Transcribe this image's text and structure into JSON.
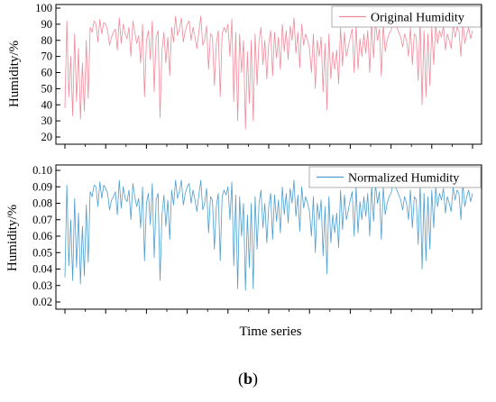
{
  "caption": {
    "open": "(",
    "letter": "b",
    "close": ")"
  },
  "chart_data": [
    {
      "type": "line",
      "ylabel": "Humidity/%",
      "xlabel": "",
      "ylim": [
        20,
        100
      ],
      "yticks": [
        20,
        30,
        40,
        50,
        60,
        70,
        80,
        90,
        100
      ],
      "ytick_labels": [
        "20",
        "30",
        "40",
        "50",
        "60",
        "70",
        "80",
        "90",
        "100"
      ],
      "legend_position": "top-right",
      "series": [
        {
          "name": "Original Humidity",
          "color": "#f08a9a",
          "values": [
            38,
            92,
            45,
            70,
            33,
            84,
            42,
            75,
            31,
            66,
            36,
            80,
            44,
            88,
            85,
            92,
            90,
            79,
            93,
            84,
            91,
            90,
            86,
            77,
            82,
            85,
            87,
            74,
            94,
            78,
            90,
            84,
            81,
            88,
            70,
            92,
            85,
            78,
            83,
            66,
            90,
            45,
            80,
            86,
            68,
            92,
            48,
            82,
            86,
            32,
            74,
            85,
            66,
            82,
            58,
            88,
            79,
            95,
            83,
            87,
            94,
            79,
            86,
            90,
            92,
            80,
            88,
            82,
            75,
            85,
            95,
            77,
            80,
            89,
            62,
            84,
            82,
            52,
            78,
            86,
            45,
            84,
            88,
            85,
            90,
            70,
            93,
            42,
            85,
            30,
            84,
            60,
            80,
            25,
            73,
            41,
            80,
            30,
            84,
            52,
            80,
            88,
            65,
            80,
            56,
            78,
            86,
            58,
            85,
            69,
            82,
            62,
            90,
            73,
            86,
            68,
            89,
            80,
            94,
            72,
            85,
            63,
            90,
            77,
            84,
            80,
            75,
            60,
            84,
            50,
            80,
            70,
            82,
            48,
            78,
            37,
            84,
            56,
            73,
            62,
            74,
            53,
            88,
            64,
            85,
            70,
            76,
            82,
            87,
            60,
            90,
            62,
            81,
            70,
            84,
            72,
            86,
            60,
            91,
            69,
            92,
            80,
            87,
            58,
            90,
            73,
            80,
            84,
            86,
            92,
            90,
            88,
            85,
            82,
            76,
            84,
            80,
            70,
            88,
            65,
            84,
            82,
            55,
            92,
            40,
            86,
            45,
            84,
            52,
            88,
            65,
            90,
            78,
            86,
            82,
            89,
            74,
            84,
            80,
            75,
            90,
            82,
            88,
            86,
            70,
            92,
            78,
            84,
            88,
            81,
            86
          ]
        }
      ]
    },
    {
      "type": "line",
      "ylabel": "Humidity/%",
      "xlabel": "Time series",
      "ylim": [
        0.02,
        0.1
      ],
      "yticks": [
        0.02,
        0.03,
        0.04,
        0.05,
        0.06,
        0.07,
        0.08,
        0.09,
        0.1
      ],
      "ytick_labels": [
        "0.02",
        "0.03",
        "0.04",
        "0.05",
        "0.06",
        "0.07",
        "0.08",
        "0.09",
        "0.10"
      ],
      "legend_position": "top-right",
      "series": [
        {
          "name": "Normalized Humidity",
          "color": "#4d9ecf",
          "values": [
            0.035,
            0.091,
            0.042,
            0.07,
            0.033,
            0.083,
            0.041,
            0.074,
            0.031,
            0.066,
            0.036,
            0.079,
            0.044,
            0.087,
            0.084,
            0.091,
            0.09,
            0.078,
            0.093,
            0.083,
            0.091,
            0.089,
            0.086,
            0.076,
            0.082,
            0.084,
            0.087,
            0.073,
            0.094,
            0.077,
            0.09,
            0.083,
            0.081,
            0.088,
            0.07,
            0.092,
            0.084,
            0.078,
            0.083,
            0.065,
            0.09,
            0.045,
            0.08,
            0.086,
            0.067,
            0.092,
            0.047,
            0.082,
            0.086,
            0.033,
            0.073,
            0.085,
            0.066,
            0.082,
            0.058,
            0.088,
            0.079,
            0.094,
            0.083,
            0.087,
            0.094,
            0.079,
            0.086,
            0.09,
            0.092,
            0.08,
            0.088,
            0.082,
            0.075,
            0.085,
            0.094,
            0.076,
            0.08,
            0.089,
            0.062,
            0.084,
            0.082,
            0.052,
            0.078,
            0.086,
            0.045,
            0.084,
            0.088,
            0.085,
            0.09,
            0.07,
            0.093,
            0.042,
            0.085,
            0.028,
            0.084,
            0.06,
            0.08,
            0.027,
            0.073,
            0.041,
            0.08,
            0.028,
            0.084,
            0.052,
            0.08,
            0.088,
            0.065,
            0.08,
            0.056,
            0.078,
            0.086,
            0.058,
            0.085,
            0.069,
            0.082,
            0.062,
            0.09,
            0.073,
            0.086,
            0.068,
            0.089,
            0.08,
            0.094,
            0.072,
            0.085,
            0.063,
            0.09,
            0.077,
            0.084,
            0.08,
            0.075,
            0.06,
            0.084,
            0.05,
            0.08,
            0.07,
            0.082,
            0.048,
            0.078,
            0.037,
            0.084,
            0.056,
            0.073,
            0.062,
            0.074,
            0.053,
            0.088,
            0.064,
            0.085,
            0.07,
            0.076,
            0.082,
            0.087,
            0.06,
            0.09,
            0.062,
            0.081,
            0.07,
            0.084,
            0.072,
            0.086,
            0.06,
            0.091,
            0.069,
            0.092,
            0.08,
            0.087,
            0.058,
            0.09,
            0.073,
            0.08,
            0.084,
            0.086,
            0.092,
            0.09,
            0.088,
            0.085,
            0.082,
            0.076,
            0.084,
            0.08,
            0.07,
            0.088,
            0.065,
            0.084,
            0.082,
            0.055,
            0.092,
            0.04,
            0.086,
            0.045,
            0.084,
            0.052,
            0.088,
            0.065,
            0.09,
            0.078,
            0.086,
            0.082,
            0.089,
            0.074,
            0.084,
            0.08,
            0.075,
            0.09,
            0.082,
            0.088,
            0.086,
            0.07,
            0.092,
            0.078,
            0.084,
            0.088,
            0.081,
            0.086
          ]
        }
      ]
    }
  ]
}
